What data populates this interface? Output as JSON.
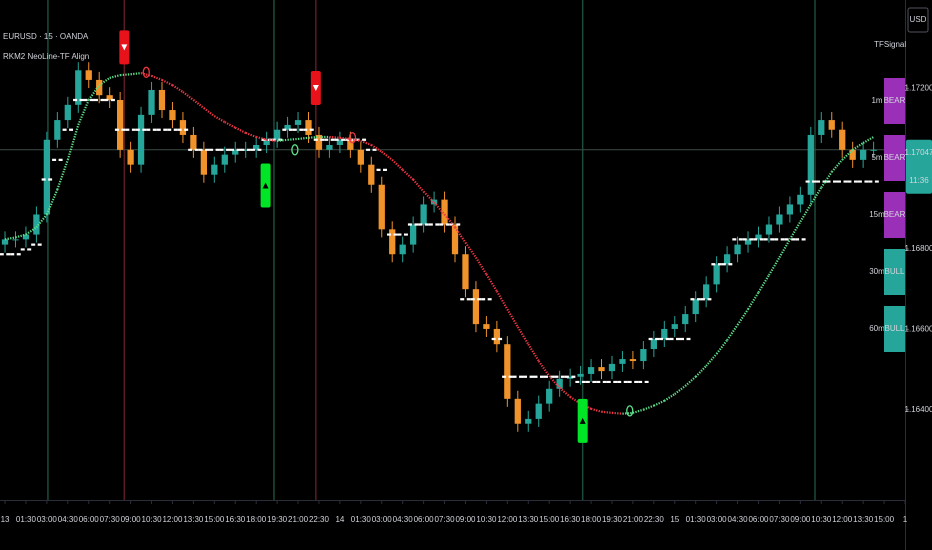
{
  "chart_data": {
    "type": "candlestick",
    "title": "EURUSD · 15 · OANDA",
    "subtitle": "RKM2 NeoLine-TF Align",
    "currency": "USD",
    "up_color": "#26a69a",
    "down_color": "#f0932b",
    "xlim": [
      -0.24,
      43
    ],
    "ylim": [
      1.162,
      1.1742
    ],
    "xticks": [
      {
        "value": 0,
        "label": "13"
      },
      {
        "value": 1,
        "label": "01:30"
      },
      {
        "value": 2,
        "label": "03:00"
      },
      {
        "value": 3,
        "label": "04:30"
      },
      {
        "value": 4,
        "label": "06:00"
      },
      {
        "value": 5,
        "label": "07:30"
      },
      {
        "value": 6,
        "label": "09:00"
      },
      {
        "value": 7,
        "label": "10:30"
      },
      {
        "value": 8,
        "label": "12:00"
      },
      {
        "value": 9,
        "label": "13:30"
      },
      {
        "value": 10,
        "label": "15:00"
      },
      {
        "value": 11,
        "label": "16:30"
      },
      {
        "value": 12,
        "label": "18:00"
      },
      {
        "value": 13,
        "label": "19:30"
      },
      {
        "value": 14,
        "label": "21:00"
      },
      {
        "value": 15,
        "label": "22:30"
      },
      {
        "value": 16,
        "label": "14"
      },
      {
        "value": 17,
        "label": "01:30"
      },
      {
        "value": 18,
        "label": "03:00"
      },
      {
        "value": 19,
        "label": "04:30"
      },
      {
        "value": 20,
        "label": "06:00"
      },
      {
        "value": 21,
        "label": "07:30"
      },
      {
        "value": 22,
        "label": "09:00"
      },
      {
        "value": 23,
        "label": "10:30"
      },
      {
        "value": 24,
        "label": "12:00"
      },
      {
        "value": 25,
        "label": "13:30"
      },
      {
        "value": 26,
        "label": "15:00"
      },
      {
        "value": 27,
        "label": "16:30"
      },
      {
        "value": 28,
        "label": "18:00"
      },
      {
        "value": 29,
        "label": "19:30"
      },
      {
        "value": 30,
        "label": "21:00"
      },
      {
        "value": 31,
        "label": "22:30"
      },
      {
        "value": 32,
        "label": "15"
      },
      {
        "value": 33,
        "label": "01:30"
      },
      {
        "value": 34,
        "label": "03:00"
      },
      {
        "value": 35,
        "label": "04:30"
      },
      {
        "value": 36,
        "label": "06:00"
      },
      {
        "value": 37,
        "label": "07:30"
      },
      {
        "value": 38,
        "label": "09:00"
      },
      {
        "value": 39,
        "label": "10:30"
      },
      {
        "value": 40,
        "label": "12:00"
      },
      {
        "value": 41,
        "label": "13:30"
      },
      {
        "value": 42,
        "label": "15:00"
      },
      {
        "value": 43,
        "label": "1"
      }
    ],
    "yticks": [
      {
        "value": 1.172,
        "label": "1.17200"
      },
      {
        "value": 1.168,
        "label": "1.16800"
      },
      {
        "value": 1.166,
        "label": "1.16600"
      },
      {
        "value": 1.164,
        "label": "1.16400"
      }
    ],
    "current_price": {
      "value": 1.17047,
      "label": "1.17047"
    },
    "countdown": "11:36",
    "x": [
      0,
      0.5,
      1,
      1.5,
      2,
      2.5,
      3,
      3.5,
      4,
      4.5,
      5,
      5.5,
      6,
      6.5,
      7,
      7.5,
      8,
      8.5,
      9,
      9.5,
      10,
      10.5,
      11,
      11.5,
      12,
      12.5,
      13,
      13.5,
      14,
      14.5,
      15,
      15.5,
      16,
      16.5,
      17,
      17.5,
      18,
      18.5,
      19,
      19.5,
      20,
      20.5,
      21,
      21.5,
      22,
      22.5,
      23,
      23.5,
      24,
      24.5,
      25,
      25.5,
      26,
      26.5,
      27,
      27.5,
      28,
      28.5,
      29,
      29.5,
      30,
      30.5,
      31,
      31.5,
      32,
      32.5,
      33,
      33.5,
      34,
      34.5,
      35,
      35.5,
      36,
      36.5,
      37,
      37.5,
      38,
      38.5,
      39,
      39.5,
      40,
      40.5,
      41,
      41.5
    ],
    "open": [
      1.16811,
      1.16824,
      1.16824,
      1.16836,
      1.16886,
      1.17072,
      1.17121,
      1.17159,
      1.17245,
      1.17221,
      1.17183,
      1.17171,
      1.17047,
      1.1701,
      1.17134,
      1.17196,
      1.17146,
      1.17121,
      1.17084,
      1.17047,
      1.16985,
      1.1701,
      1.17035,
      1.17047,
      1.17047,
      1.17059,
      1.17072,
      1.17097,
      1.17109,
      1.17121,
      1.17084,
      1.17047,
      1.17059,
      1.17072,
      1.17047,
      1.1701,
      1.1696,
      1.16849,
      1.16787,
      1.16811,
      1.16861,
      1.16911,
      1.16923,
      1.16861,
      1.16787,
      1.167,
      1.16613,
      1.16601,
      1.16563,
      1.16427,
      1.16365,
      1.16377,
      1.16415,
      1.16452,
      1.16477,
      1.16482,
      1.16489,
      1.16506,
      1.16496,
      1.16514,
      1.16526,
      1.16521,
      1.16551,
      1.16576,
      1.16601,
      1.16613,
      1.16638,
      1.16675,
      1.16712,
      1.16762,
      1.16787,
      1.16811,
      1.16824,
      1.16836,
      1.16861,
      1.16886,
      1.16911,
      1.16935,
      1.17084,
      1.17121,
      1.17097,
      1.17047,
      1.17022,
      1.17047
    ],
    "high": [
      1.16844,
      1.16844,
      1.16856,
      1.16906,
      1.17092,
      1.17141,
      1.17179,
      1.17265,
      1.17265,
      1.17241,
      1.17203,
      1.17191,
      1.17067,
      1.17154,
      1.17216,
      1.17216,
      1.17166,
      1.17141,
      1.17104,
      1.17067,
      1.1703,
      1.17055,
      1.17067,
      1.17067,
      1.17079,
      1.17092,
      1.17117,
      1.17129,
      1.17141,
      1.17141,
      1.17104,
      1.17079,
      1.17092,
      1.17092,
      1.17067,
      1.1703,
      1.1698,
      1.16869,
      1.16831,
      1.16881,
      1.16931,
      1.16943,
      1.16943,
      1.16881,
      1.16807,
      1.1672,
      1.16633,
      1.16621,
      1.16583,
      1.16447,
      1.16397,
      1.16435,
      1.16472,
      1.16497,
      1.16502,
      1.16509,
      1.16526,
      1.16526,
      1.16534,
      1.16546,
      1.16546,
      1.16571,
      1.16596,
      1.16621,
      1.16633,
      1.16658,
      1.16695,
      1.16732,
      1.16782,
      1.16807,
      1.16831,
      1.16844,
      1.16856,
      1.16881,
      1.16906,
      1.16931,
      1.16955,
      1.17104,
      1.17141,
      1.17141,
      1.17117,
      1.17067,
      1.17067,
      1.17067
    ],
    "low": [
      1.16791,
      1.16804,
      1.16804,
      1.16816,
      1.16866,
      1.17052,
      1.17101,
      1.17139,
      1.17201,
      1.17163,
      1.17151,
      1.17027,
      1.1699,
      1.1699,
      1.17114,
      1.17126,
      1.17101,
      1.17064,
      1.17027,
      1.16965,
      1.16965,
      1.1699,
      1.17015,
      1.17027,
      1.17027,
      1.17039,
      1.17052,
      1.17077,
      1.17089,
      1.17064,
      1.17027,
      1.17027,
      1.17039,
      1.17027,
      1.1699,
      1.1694,
      1.16829,
      1.16767,
      1.16767,
      1.16791,
      1.16841,
      1.16891,
      1.16841,
      1.16767,
      1.1668,
      1.16593,
      1.16581,
      1.16543,
      1.16407,
      1.16345,
      1.16345,
      1.16357,
      1.16395,
      1.16432,
      1.16457,
      1.16462,
      1.16469,
      1.16476,
      1.16476,
      1.16494,
      1.16501,
      1.16501,
      1.16531,
      1.16556,
      1.16581,
      1.16593,
      1.16618,
      1.16655,
      1.16692,
      1.16742,
      1.16767,
      1.16791,
      1.16804,
      1.16816,
      1.16841,
      1.16866,
      1.16891,
      1.16915,
      1.17064,
      1.17077,
      1.17027,
      1.17002,
      1.17002,
      1.17027
    ],
    "close": [
      1.16824,
      1.16824,
      1.16836,
      1.16886,
      1.17072,
      1.17121,
      1.17159,
      1.17245,
      1.17221,
      1.17183,
      1.17171,
      1.17047,
      1.1701,
      1.17134,
      1.17196,
      1.17146,
      1.17121,
      1.17084,
      1.17047,
      1.16985,
      1.1701,
      1.17035,
      1.17047,
      1.17047,
      1.17059,
      1.17072,
      1.17097,
      1.17109,
      1.17121,
      1.17084,
      1.17047,
      1.17059,
      1.17072,
      1.17047,
      1.1701,
      1.1696,
      1.16849,
      1.16787,
      1.16811,
      1.16861,
      1.16911,
      1.16923,
      1.16861,
      1.16787,
      1.167,
      1.16613,
      1.16601,
      1.16563,
      1.16427,
      1.16365,
      1.16377,
      1.16415,
      1.16452,
      1.16477,
      1.16482,
      1.16489,
      1.16506,
      1.16496,
      1.16514,
      1.16526,
      1.16521,
      1.16551,
      1.16576,
      1.16601,
      1.16613,
      1.16638,
      1.16675,
      1.16712,
      1.16762,
      1.16787,
      1.16811,
      1.16824,
      1.16836,
      1.16861,
      1.16886,
      1.16911,
      1.16935,
      1.17084,
      1.17121,
      1.17097,
      1.17047,
      1.17022,
      1.17047,
      1.17047
    ],
    "neoline": {
      "up_color": "#5ee08a",
      "down_color": "#f23645",
      "values": [
        1.16824,
        1.16829,
        1.16836,
        1.16854,
        1.16886,
        1.16948,
        1.17022,
        1.17109,
        1.17171,
        1.17208,
        1.17226,
        1.17233,
        1.17235,
        1.17238,
        1.17231,
        1.17221,
        1.17208,
        1.17191,
        1.17171,
        1.17151,
        1.17131,
        1.17116,
        1.17102,
        1.17089,
        1.17079,
        1.17072,
        1.17069,
        1.17072,
        1.17074,
        1.17077,
        1.17079,
        1.17079,
        1.17077,
        1.17074,
        1.17069,
        1.17059,
        1.17042,
        1.17022,
        1.16997,
        1.16973,
        1.16943,
        1.16916,
        1.16886,
        1.16854,
        1.16816,
        1.16779,
        1.16737,
        1.16695,
        1.1665,
        1.16606,
        1.16563,
        1.16521,
        1.16484,
        1.16454,
        1.16432,
        1.16415,
        1.16402,
        1.16395,
        1.16392,
        1.1639,
        1.16392,
        1.164,
        1.1641,
        1.16422,
        1.16439,
        1.16459,
        1.16482,
        1.16509,
        1.16539,
        1.16573,
        1.16611,
        1.1665,
        1.16692,
        1.16735,
        1.16779,
        1.16824,
        1.16868,
        1.16911,
        1.16953,
        1.16992,
        1.17022,
        1.17047,
        1.17064,
        1.17079
      ]
    },
    "trail": {
      "color": "#ffffff",
      "values": [
        1.16787,
        1.16787,
        1.16799,
        1.16811,
        1.16973,
        1.17022,
        1.17097,
        1.17171,
        1.17171,
        1.17171,
        1.17171,
        1.17097,
        1.17097,
        1.17097,
        1.17097,
        1.17097,
        1.17097,
        1.17097,
        1.17047,
        1.17047,
        1.17047,
        1.17047,
        1.17047,
        1.17047,
        1.17047,
        1.17072,
        1.17072,
        1.17097,
        1.17097,
        1.17097,
        1.17072,
        1.17072,
        1.17072,
        1.17072,
        1.17072,
        1.17047,
        1.16997,
        1.16836,
        1.16836,
        1.16861,
        1.16861,
        1.16861,
        1.16861,
        1.16861,
        1.16675,
        1.16675,
        1.16675,
        1.16576,
        1.16482,
        1.16482,
        1.16482,
        1.16482,
        1.16482,
        1.16482,
        1.16482,
        1.16469,
        1.16469,
        1.16469,
        1.16469,
        1.16469,
        1.16469,
        1.16469,
        1.16576,
        1.16576,
        1.16576,
        1.16576,
        1.16675,
        1.16675,
        1.16762,
        1.16762,
        1.16824,
        1.16824,
        1.16824,
        1.16824,
        1.16824,
        1.16824,
        1.16824,
        1.16968,
        1.16968,
        1.16968,
        1.16968,
        1.16968,
        1.16968,
        1.16968
      ]
    },
    "vlines": [
      {
        "x": 2.05,
        "color": "#1c4a3c"
      },
      {
        "x": 5.7,
        "color": "#5a1d26"
      },
      {
        "x": 12.85,
        "color": "#1c4a3c"
      },
      {
        "x": 14.85,
        "color": "#5a1d26"
      },
      {
        "x": 27.6,
        "color": "#1c4a3c"
      },
      {
        "x": 38.7,
        "color": "#1c4a3c"
      }
    ],
    "sell_signals": [
      {
        "x": 5.7,
        "price": 1.17302
      },
      {
        "x": 14.85,
        "price": 1.17201
      }
    ],
    "buy_signals": [
      {
        "x": 12.45,
        "price": 1.16958
      },
      {
        "x": 27.6,
        "price": 1.16372
      }
    ],
    "cross_markers": [
      {
        "x": 6.75,
        "price": 1.1724,
        "color": "#f23645"
      },
      {
        "x": 13.85,
        "price": 1.17047,
        "color": "#5ee08a"
      },
      {
        "x": 16.6,
        "price": 1.17077,
        "color": "#f23645"
      },
      {
        "x": 29.85,
        "price": 1.16397,
        "color": "#5ee08a"
      }
    ],
    "table": {
      "header": [
        "TF",
        "Signal"
      ],
      "rows": [
        {
          "tf": "1m",
          "signal": "BEAR",
          "color": "#9b30b8"
        },
        {
          "tf": "5m",
          "signal": "BEAR",
          "color": "#9b30b8"
        },
        {
          "tf": "15m",
          "signal": "BEAR",
          "color": "#9b30b8"
        },
        {
          "tf": "30m",
          "signal": "BULL",
          "color": "#26a69a"
        },
        {
          "tf": "60m",
          "signal": "BULL",
          "color": "#26a69a"
        }
      ]
    }
  }
}
